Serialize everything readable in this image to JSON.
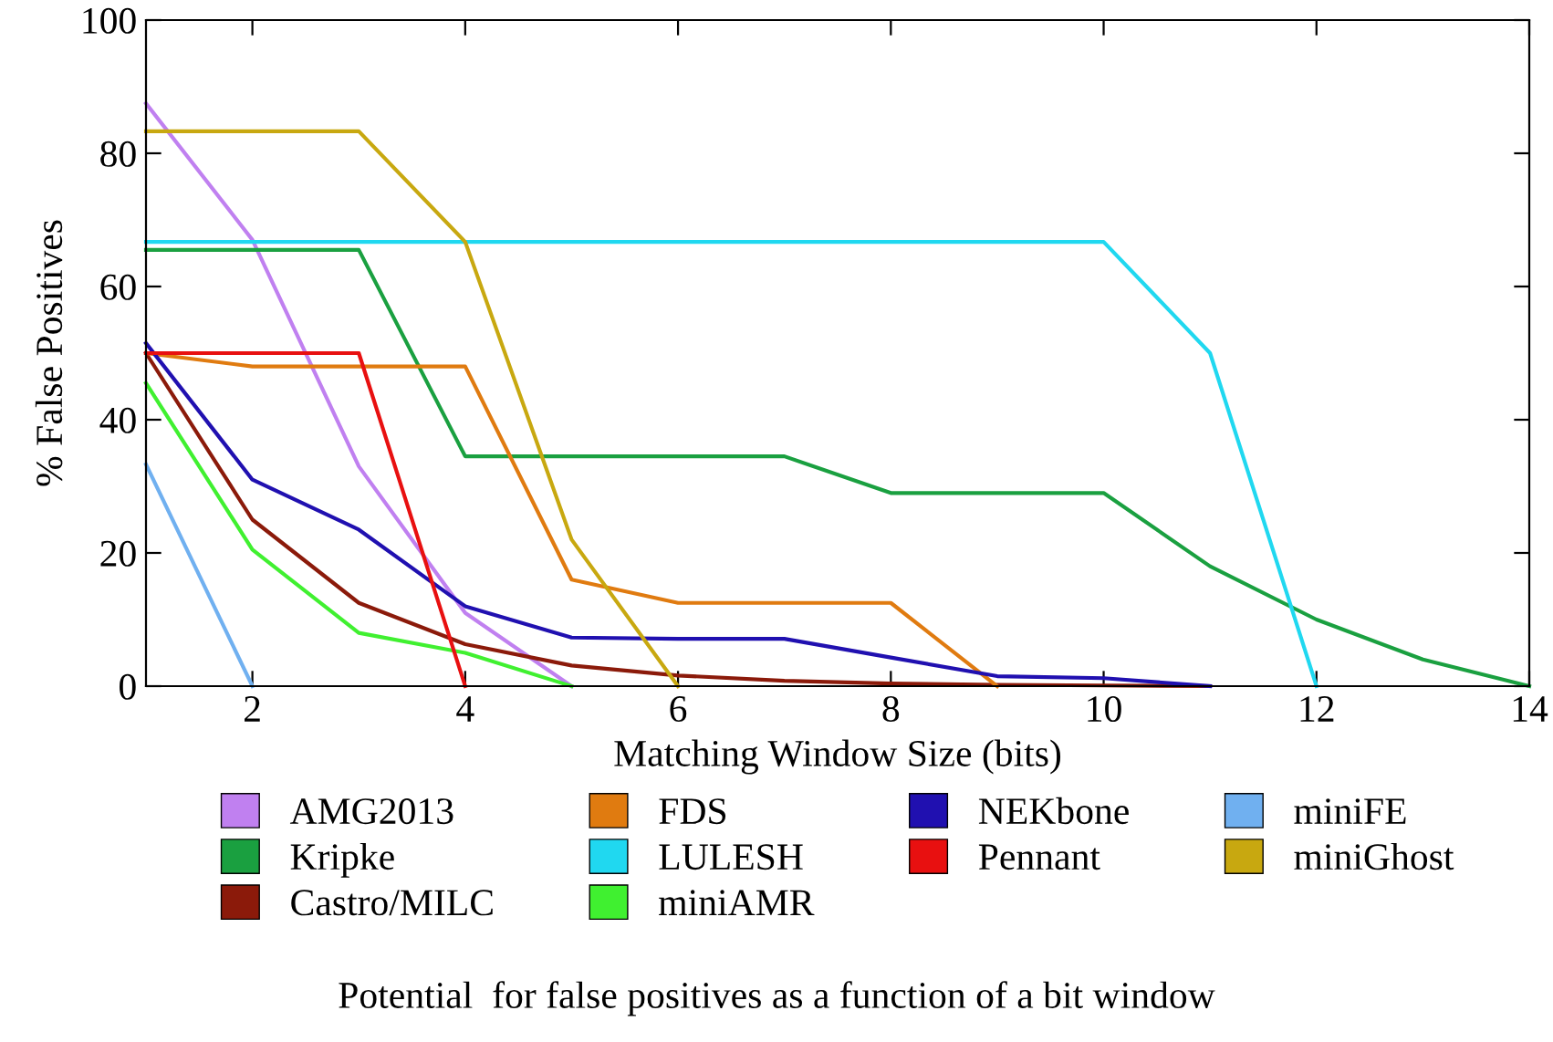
{
  "chart_data": {
    "type": "line",
    "xlabel": "Matching Window Size (bits)",
    "ylabel": "% False Positives",
    "xlim": [
      1,
      14
    ],
    "ylim": [
      0,
      100
    ],
    "xticks": [
      2,
      4,
      6,
      8,
      10,
      12,
      14
    ],
    "yticks": [
      0,
      20,
      40,
      60,
      80,
      100
    ],
    "grid": false,
    "legend": "bottom",
    "marker": "none",
    "line_style": "solid",
    "annotations": [
      "Potential  for false positives as a function of a bit window"
    ],
    "series": [
      {
        "name": "AMG2013",
        "color": "#c080f0",
        "x": [
          1,
          2,
          3,
          4,
          5
        ],
        "values": [
          87.5,
          67,
          33,
          11,
          0
        ]
      },
      {
        "name": "Kripke",
        "color": "#1aa040",
        "x": [
          1,
          2,
          3,
          4,
          5,
          6,
          7,
          8,
          9,
          10,
          11,
          12,
          13,
          14
        ],
        "values": [
          65.5,
          65.5,
          65.5,
          34.5,
          34.5,
          34.5,
          34.5,
          29,
          29,
          29,
          18,
          10,
          4,
          0
        ]
      },
      {
        "name": "Castro/MILC",
        "color": "#8b1a0a",
        "x": [
          1,
          2,
          3,
          4,
          5,
          6,
          7,
          8,
          9,
          10,
          11
        ],
        "values": [
          50,
          25,
          12.5,
          6.3,
          3.1,
          1.6,
          0.8,
          0.4,
          0.2,
          0.1,
          0
        ]
      },
      {
        "name": "FDS",
        "color": "#e07b10",
        "x": [
          1,
          2,
          3,
          4,
          5,
          6,
          7,
          8,
          9
        ],
        "values": [
          50,
          48,
          48,
          48,
          16,
          12.5,
          12.5,
          12.5,
          0
        ]
      },
      {
        "name": "LULESH",
        "color": "#20d8f0",
        "x": [
          1,
          2,
          3,
          4,
          5,
          6,
          7,
          8,
          9,
          10,
          11,
          12
        ],
        "values": [
          66.7,
          66.7,
          66.7,
          66.7,
          66.7,
          66.7,
          66.7,
          66.7,
          66.7,
          66.7,
          50,
          0
        ]
      },
      {
        "name": "miniAMR",
        "color": "#40f030",
        "x": [
          1,
          2,
          3,
          4,
          5
        ],
        "values": [
          45.5,
          20.5,
          8,
          5,
          0
        ]
      },
      {
        "name": "NEKbone",
        "color": "#2010b0",
        "x": [
          1,
          2,
          3,
          4,
          5,
          6,
          7,
          8,
          9,
          10,
          11
        ],
        "values": [
          51.5,
          31,
          23.5,
          12,
          7.3,
          7.1,
          7.1,
          4.3,
          1.5,
          1.2,
          0
        ]
      },
      {
        "name": "Pennant",
        "color": "#e81010",
        "x": [
          1,
          2,
          3,
          4
        ],
        "values": [
          50,
          50,
          50,
          0
        ]
      },
      {
        "name": "miniFE",
        "color": "#70b0f0",
        "x": [
          1,
          2
        ],
        "values": [
          33.3,
          0
        ]
      },
      {
        "name": "miniGhost",
        "color": "#c8a810",
        "x": [
          1,
          2,
          3,
          4,
          5,
          6
        ],
        "values": [
          83.3,
          83.3,
          83.3,
          66.7,
          22,
          0
        ]
      }
    ]
  }
}
